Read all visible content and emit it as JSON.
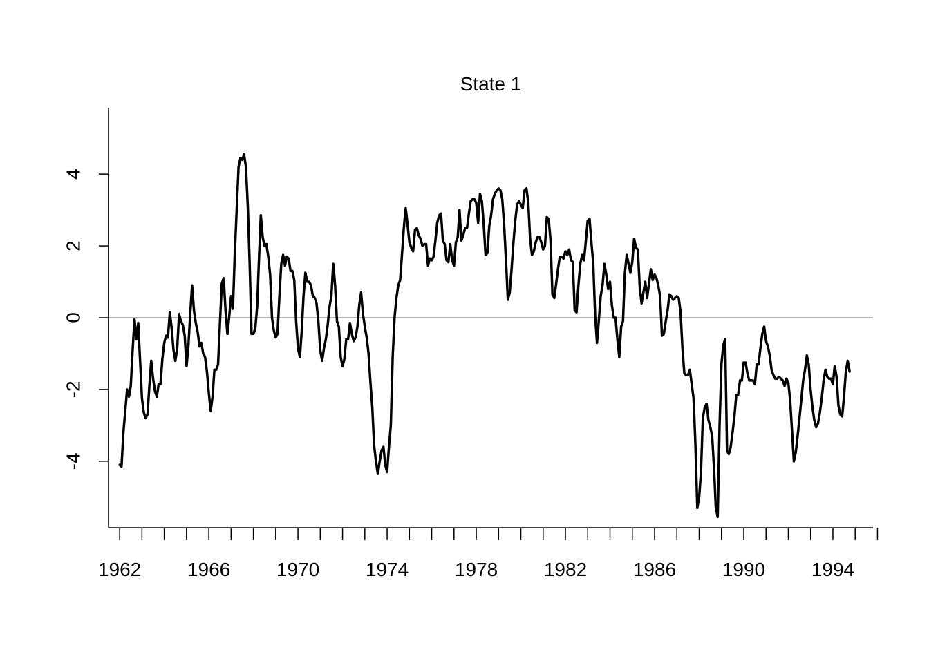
{
  "chart_data": {
    "type": "line",
    "title": "State 1",
    "xlabel": "",
    "ylabel": "",
    "x_start": 1962.0,
    "x_step": 0.08333,
    "xlim": [
      1961.5,
      1995.8
    ],
    "ylim": [
      -5.85,
      5.85
    ],
    "x_tick_values": [
      1962,
      1963,
      1964,
      1965,
      1966,
      1967,
      1968,
      1969,
      1970,
      1971,
      1972,
      1973,
      1974,
      1975,
      1976,
      1977,
      1978,
      1979,
      1980,
      1981,
      1982,
      1983,
      1984,
      1985,
      1986,
      1987,
      1988,
      1989,
      1990,
      1991,
      1992,
      1993,
      1994,
      1995,
      1996
    ],
    "x_tick_labels": [
      "1962",
      "1966",
      "1970",
      "1974",
      "1978",
      "1982",
      "1986",
      "1990",
      "1994"
    ],
    "x_tick_label_values": [
      1962,
      1966,
      1970,
      1974,
      1978,
      1982,
      1986,
      1990,
      1994
    ],
    "y_ticks": [
      -4,
      -2,
      0,
      2,
      4
    ],
    "y_tick_labels": [
      "-4",
      "-2",
      "0",
      "2",
      "4"
    ],
    "reference_line": {
      "y": 0,
      "color": "#b3b3b3"
    },
    "line_color": "#000000",
    "grid": false,
    "legend": "none",
    "series": [
      {
        "values": [
          -4.1,
          -4.15,
          -3.2,
          -2.6,
          -2.0,
          -2.2,
          -1.9,
          -0.9,
          -0.05,
          -0.6,
          -0.15,
          -1.2,
          -2.25,
          -2.65,
          -2.8,
          -2.7,
          -1.9,
          -1.2,
          -1.7,
          -2.05,
          -2.2,
          -1.85,
          -1.85,
          -1.15,
          -0.7,
          -0.5,
          -0.55,
          0.15,
          -0.3,
          -0.9,
          -1.2,
          -0.85,
          0.1,
          -0.1,
          -0.2,
          -0.5,
          -1.35,
          -0.8,
          0.1,
          0.9,
          0.2,
          -0.15,
          -0.4,
          -0.8,
          -0.7,
          -1.0,
          -1.1,
          -1.5,
          -2.1,
          -2.6,
          -2.2,
          -1.45,
          -1.45,
          -1.3,
          -0.15,
          0.95,
          1.1,
          0.2,
          -0.45,
          0.05,
          0.6,
          0.25,
          1.8,
          3.0,
          4.2,
          4.45,
          4.4,
          4.55,
          4.2,
          3.1,
          1.5,
          -0.45,
          -0.45,
          -0.3,
          0.3,
          1.6,
          2.85,
          2.25,
          2.0,
          2.05,
          1.7,
          1.2,
          0.0,
          -0.35,
          -0.55,
          -0.45,
          0.6,
          1.5,
          1.75,
          1.45,
          1.7,
          1.65,
          1.3,
          1.3,
          1.05,
          -0.1,
          -0.85,
          -1.1,
          -0.4,
          0.6,
          1.25,
          1.0,
          1.0,
          0.9,
          0.6,
          0.55,
          0.4,
          -0.1,
          -0.9,
          -1.2,
          -0.85,
          -0.6,
          -0.2,
          0.3,
          0.6,
          1.5,
          0.9,
          -0.1,
          -0.25,
          -1.1,
          -1.35,
          -1.15,
          -0.6,
          -0.6,
          -0.15,
          -0.45,
          -0.65,
          -0.55,
          -0.25,
          0.35,
          0.7,
          0.1,
          -0.25,
          -0.55,
          -1.0,
          -1.8,
          -2.5,
          -3.55,
          -4.0,
          -4.35,
          -4.0,
          -3.7,
          -3.6,
          -4.1,
          -4.3,
          -3.6,
          -3.0,
          -1.1,
          0.0,
          0.55,
          0.9,
          1.05,
          1.75,
          2.5,
          3.05,
          2.6,
          2.1,
          1.95,
          1.85,
          2.45,
          2.5,
          2.3,
          2.2,
          2.0,
          2.05,
          2.05,
          1.45,
          1.65,
          1.6,
          1.7,
          2.15,
          2.65,
          2.85,
          2.9,
          2.15,
          2.05,
          1.6,
          1.55,
          2.05,
          1.6,
          1.45,
          2.1,
          2.25,
          3.0,
          2.15,
          2.3,
          2.5,
          2.5,
          2.9,
          3.25,
          3.3,
          3.3,
          3.2,
          2.65,
          3.45,
          3.25,
          2.6,
          1.75,
          1.8,
          2.55,
          2.85,
          3.3,
          3.45,
          3.55,
          3.6,
          3.55,
          3.3,
          2.6,
          1.6,
          0.5,
          0.7,
          1.35,
          2.1,
          2.7,
          3.15,
          3.25,
          3.15,
          3.05,
          3.55,
          3.6,
          3.2,
          2.2,
          1.75,
          1.85,
          2.1,
          2.25,
          2.25,
          2.1,
          1.9,
          2.0,
          2.8,
          2.75,
          2.15,
          0.65,
          0.55,
          0.95,
          1.35,
          1.7,
          1.7,
          1.65,
          1.85,
          1.75,
          1.9,
          1.6,
          1.55,
          0.2,
          0.15,
          0.9,
          1.5,
          1.75,
          1.6,
          2.15,
          2.7,
          2.75,
          2.1,
          1.5,
          0.05,
          -0.7,
          -0.05,
          0.6,
          0.9,
          1.5,
          1.2,
          0.8,
          1.0,
          0.35,
          0.0,
          0.0,
          -0.6,
          -1.1,
          -0.25,
          -0.1,
          1.25,
          1.75,
          1.5,
          1.25,
          1.55,
          2.2,
          1.95,
          1.9,
          0.85,
          0.4,
          0.7,
          1.0,
          0.55,
          0.95,
          1.35,
          1.05,
          1.2,
          1.1,
          0.9,
          0.6,
          -0.5,
          -0.45,
          -0.1,
          0.2,
          0.65,
          0.6,
          0.5,
          0.55,
          0.6,
          0.55,
          0.15,
          -0.85,
          -1.55,
          -1.6,
          -1.6,
          -1.45,
          -1.85,
          -2.25,
          -3.55,
          -5.3,
          -5.0,
          -4.3,
          -2.8,
          -2.5,
          -2.4,
          -2.85,
          -3.05,
          -3.3,
          -4.2,
          -5.3,
          -5.55,
          -3.0,
          -1.3,
          -0.75,
          -0.6,
          -3.7,
          -3.8,
          -3.6,
          -3.2,
          -2.75,
          -2.15,
          -2.15,
          -1.75,
          -1.75,
          -1.25,
          -1.25,
          -1.55,
          -1.75,
          -1.75,
          -1.75,
          -1.85,
          -1.3,
          -1.3,
          -0.85,
          -0.45,
          -0.25,
          -0.65,
          -0.8,
          -1.05,
          -1.45,
          -1.6,
          -1.7,
          -1.7,
          -1.65,
          -1.7,
          -1.75,
          -1.9,
          -1.7,
          -1.8,
          -2.3,
          -3.15,
          -4.0,
          -3.75,
          -3.3,
          -2.8,
          -2.3,
          -1.75,
          -1.45,
          -1.05,
          -1.3,
          -2.0,
          -2.5,
          -2.85,
          -3.05,
          -2.95,
          -2.65,
          -2.25,
          -1.75,
          -1.45,
          -1.65,
          -1.7,
          -1.7,
          -1.85,
          -1.35,
          -1.65,
          -2.45,
          -2.7,
          -2.75,
          -2.2,
          -1.5,
          -1.2,
          -1.5
        ]
      }
    ]
  }
}
